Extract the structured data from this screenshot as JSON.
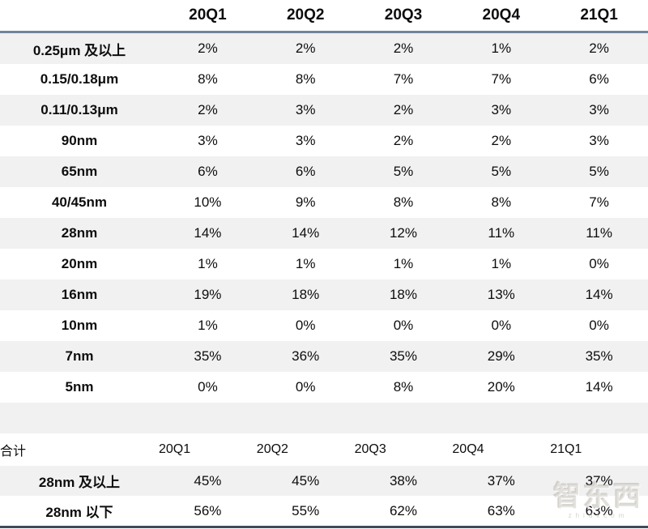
{
  "chart_data": {
    "type": "table",
    "columns": [
      "",
      "20Q1",
      "20Q2",
      "20Q3",
      "20Q4",
      "21Q1"
    ],
    "rows": [
      {
        "label": "0.25μm 及以上",
        "values": [
          "2%",
          "2%",
          "2%",
          "1%",
          "2%"
        ]
      },
      {
        "label": "0.15/0.18μm",
        "values": [
          "8%",
          "8%",
          "7%",
          "7%",
          "6%"
        ]
      },
      {
        "label": "0.11/0.13μm",
        "values": [
          "2%",
          "3%",
          "2%",
          "3%",
          "3%"
        ]
      },
      {
        "label": "90nm",
        "values": [
          "3%",
          "3%",
          "2%",
          "2%",
          "3%"
        ]
      },
      {
        "label": "65nm",
        "values": [
          "6%",
          "6%",
          "5%",
          "5%",
          "5%"
        ]
      },
      {
        "label": "40/45nm",
        "values": [
          "10%",
          "9%",
          "8%",
          "8%",
          "7%"
        ]
      },
      {
        "label": "28nm",
        "values": [
          "14%",
          "14%",
          "12%",
          "11%",
          "11%"
        ]
      },
      {
        "label": "20nm",
        "values": [
          "1%",
          "1%",
          "1%",
          "1%",
          "0%"
        ]
      },
      {
        "label": "16nm",
        "values": [
          "19%",
          "18%",
          "18%",
          "13%",
          "14%"
        ]
      },
      {
        "label": "10nm",
        "values": [
          "1%",
          "0%",
          "0%",
          "0%",
          "0%"
        ]
      },
      {
        "label": "7nm",
        "values": [
          "35%",
          "36%",
          "35%",
          "29%",
          "35%"
        ]
      },
      {
        "label": "5nm",
        "values": [
          "0%",
          "0%",
          "8%",
          "20%",
          "14%"
        ]
      }
    ],
    "summary": {
      "header": [
        "合计",
        "20Q1",
        "20Q2",
        "20Q3",
        "20Q4",
        "21Q1"
      ],
      "rows": [
        {
          "label": "28nm 及以上",
          "values": [
            "45%",
            "45%",
            "38%",
            "37%",
            "37%"
          ]
        },
        {
          "label": "28nm 以下",
          "values": [
            "56%",
            "55%",
            "62%",
            "63%",
            "63%"
          ]
        }
      ]
    }
  },
  "watermark": {
    "text": "智东西",
    "subtext": "zhidxcom"
  },
  "colors": {
    "stripe": "#f1f1f1",
    "top_rule": "#72839c",
    "bottom_rule": "#3f4a59",
    "text": "#0d0d0d"
  }
}
